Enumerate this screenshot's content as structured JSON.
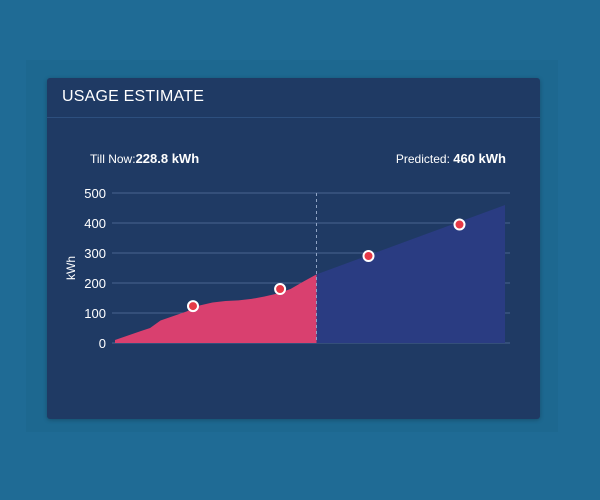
{
  "card": {
    "title": "USAGE ESTIMATE",
    "till_now_label": "Till Now:",
    "till_now_value": "228.8 kWh",
    "predicted_label": "Predicted:",
    "predicted_value": "460 kWh"
  },
  "colors": {
    "actual_area": "#d9406f",
    "predicted_area": "#2a3c82",
    "marker_fill": "#e63946",
    "marker_stroke": "#ffffff",
    "grid": "#4a6490",
    "divider": "#8fa3c4"
  },
  "chart_data": {
    "type": "area",
    "ylabel": "kWh",
    "ylim": [
      0,
      500
    ],
    "yticks": [
      "0",
      "100",
      "200",
      "300",
      "400",
      "500"
    ],
    "grid": true,
    "x_range": [
      0,
      30
    ],
    "divider_x": 15.5,
    "series": [
      {
        "name": "",
        "kind": "actual",
        "points": [
          [
            0,
            10
          ],
          [
            1,
            25
          ],
          [
            2,
            40
          ],
          [
            2.7,
            50
          ],
          [
            3.5,
            75
          ],
          [
            4.5,
            90
          ],
          [
            5.5,
            105
          ],
          [
            6.5,
            125
          ],
          [
            7.5,
            135
          ],
          [
            8.5,
            140
          ],
          [
            9.5,
            142
          ],
          [
            10.5,
            147
          ],
          [
            11.5,
            155
          ],
          [
            12.5,
            165
          ],
          [
            13.5,
            180
          ],
          [
            14.5,
            205
          ],
          [
            15.5,
            228.8
          ]
        ]
      },
      {
        "name": "",
        "kind": "predicted",
        "points": [
          [
            15.5,
            228.8
          ],
          [
            30,
            460
          ]
        ]
      }
    ],
    "markers": [
      [
        6,
        123
      ],
      [
        12.7,
        180
      ],
      [
        19.5,
        290
      ],
      [
        26.5,
        395
      ]
    ]
  }
}
